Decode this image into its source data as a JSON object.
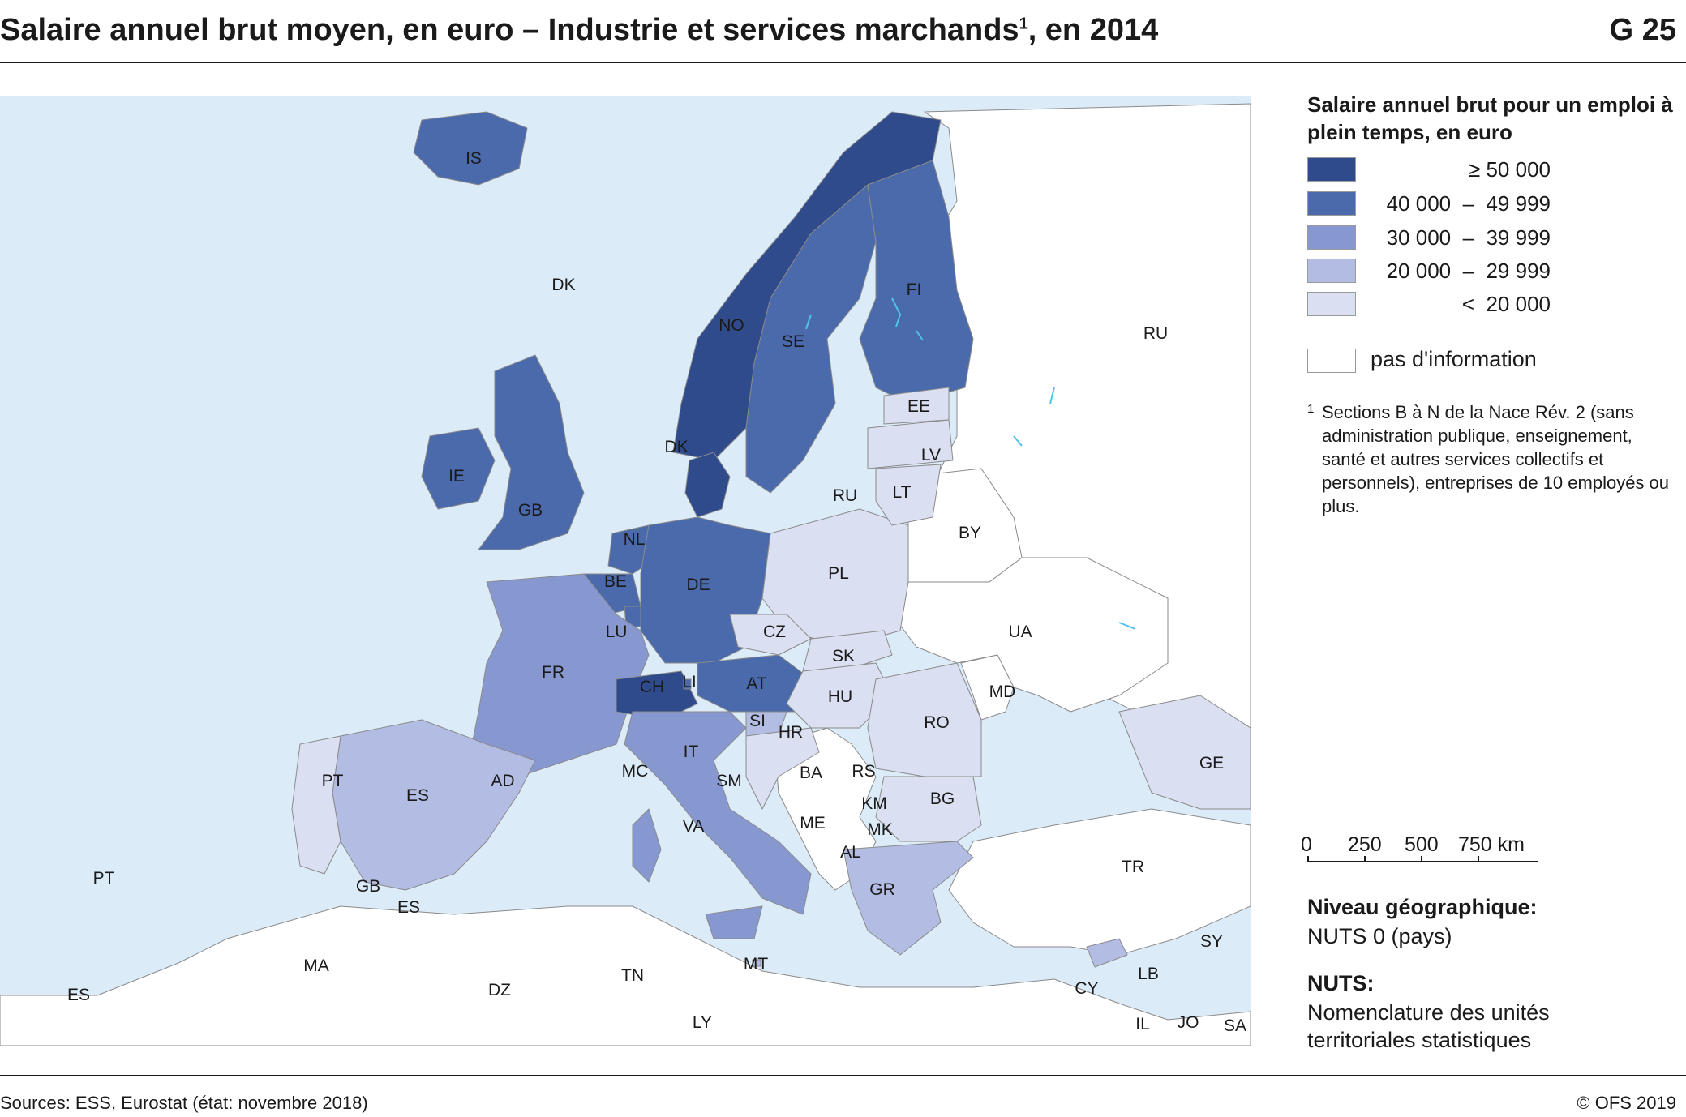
{
  "header": {
    "title": "Salaire annuel brut moyen, en euro – Industrie et services marchands",
    "title_sup": "1",
    "title_suffix": ", en 2014",
    "figure_number": "G 25"
  },
  "legend": {
    "title": "Salaire annuel brut pour un emploi à plein temps, en euro",
    "classes": [
      {
        "id": "c5",
        "label": "≥ 50 000",
        "color": "#2f4b8c"
      },
      {
        "id": "c4",
        "label": "40 000  –  49 999",
        "color": "#4b6aab"
      },
      {
        "id": "c3",
        "label": "30 000  –  39 999",
        "color": "#8798d0"
      },
      {
        "id": "c2",
        "label": "20 000  –  29 999",
        "color": "#b3bde3"
      },
      {
        "id": "c1",
        "label": "<  20 000",
        "color": "#dadff2"
      }
    ],
    "no_info_label": "pas d'information",
    "no_info_color": "#ffffff"
  },
  "footnote": {
    "mark": "1",
    "text": "Sections B à N de la Nace Rév. 2 (sans administration publique, enseignement, santé et autres services collectifs et personnels), entreprises de 10 employés ou plus."
  },
  "scale_bar": {
    "ticks": [
      "0",
      "250",
      "500",
      "750 km"
    ]
  },
  "geo_level": {
    "heading": "Niveau géographique:",
    "value": "NUTS 0 (pays)"
  },
  "nuts": {
    "heading": "NUTS:",
    "value": "Nomenclature des unités\nterritoriales statistiques"
  },
  "footer": {
    "sources": "Sources: ESS, Eurostat (état: novembre 2018)",
    "copyright": "© OFS 2019"
  },
  "map": {
    "sea_color": "#dcebf8",
    "water_color": "#4fc3e8",
    "countries": [
      {
        "code": "IS",
        "class": "c4"
      },
      {
        "code": "NO",
        "class": "c5"
      },
      {
        "code": "SE",
        "class": "c4"
      },
      {
        "code": "FI",
        "class": "c4"
      },
      {
        "code": "DK",
        "class": "c5"
      },
      {
        "code": "IE",
        "class": "c4"
      },
      {
        "code": "GB",
        "class": "c4"
      },
      {
        "code": "NL",
        "class": "c4"
      },
      {
        "code": "BE",
        "class": "c4"
      },
      {
        "code": "LU",
        "class": "c4"
      },
      {
        "code": "DE",
        "class": "c4"
      },
      {
        "code": "FR",
        "class": "c3"
      },
      {
        "code": "CH",
        "class": "c5"
      },
      {
        "code": "LI",
        "class": "c4"
      },
      {
        "code": "AT",
        "class": "c4"
      },
      {
        "code": "IT",
        "class": "c3"
      },
      {
        "code": "ES",
        "class": "c2"
      },
      {
        "code": "PT",
        "class": "c1"
      },
      {
        "code": "PL",
        "class": "c1"
      },
      {
        "code": "CZ",
        "class": "c1"
      },
      {
        "code": "SK",
        "class": "c1"
      },
      {
        "code": "HU",
        "class": "c1"
      },
      {
        "code": "SI",
        "class": "c2"
      },
      {
        "code": "HR",
        "class": "c1"
      },
      {
        "code": "RO",
        "class": "c1"
      },
      {
        "code": "BG",
        "class": "c1"
      },
      {
        "code": "GR",
        "class": "c2"
      },
      {
        "code": "CY",
        "class": "c2"
      },
      {
        "code": "MT",
        "class": "c2"
      },
      {
        "code": "EE",
        "class": "c1"
      },
      {
        "code": "LV",
        "class": "c1"
      },
      {
        "code": "LT",
        "class": "c1"
      }
    ],
    "labels": [
      "IS",
      "DK",
      "NO",
      "SE",
      "FI",
      "RU",
      "EE",
      "LV",
      "LT",
      "RU",
      "DK",
      "IE",
      "GB",
      "NL",
      "BE",
      "DE",
      "PL",
      "BY",
      "LU",
      "CZ",
      "SK",
      "UA",
      "FR",
      "CH",
      "LI",
      "AT",
      "HU",
      "MD",
      "RO",
      "SI",
      "HR",
      "IT",
      "PT",
      "ES",
      "AD",
      "MC",
      "SM",
      "BA",
      "RS",
      "GE",
      "BG",
      "KM",
      "ME",
      "VA",
      "MK",
      "AL",
      "TR",
      "GR",
      "PT",
      "GB",
      "ES",
      "MA",
      "DZ",
      "TN",
      "MT",
      "SY",
      "CY",
      "LB",
      "ES",
      "LY",
      "IL",
      "JO",
      "SA"
    ]
  }
}
